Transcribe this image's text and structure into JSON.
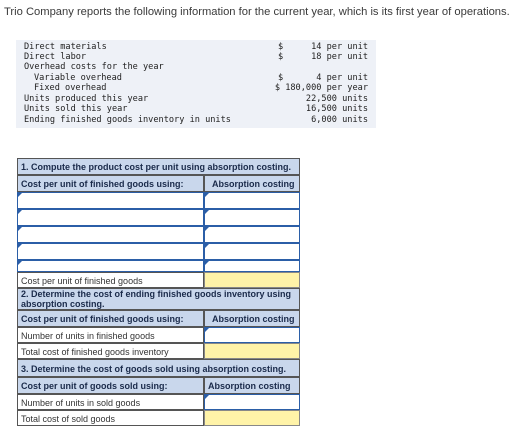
{
  "intro": "Trio Company reports the following information for the current year, which is its first year of operations.",
  "info_rows": [
    {
      "label": "Direct materials",
      "indent": false,
      "dollar": "$",
      "value": "14 per unit"
    },
    {
      "label": "Direct labor",
      "indent": false,
      "dollar": "$",
      "value": "18 per unit"
    },
    {
      "label": "Overhead costs for the year",
      "indent": false,
      "dollar": "",
      "value": ""
    },
    {
      "label": "Variable overhead",
      "indent": true,
      "dollar": "$",
      "value": "4 per unit"
    },
    {
      "label": "Fixed overhead",
      "indent": true,
      "dollar": "",
      "value": "$ 180,000 per year"
    },
    {
      "label": "Units produced this year",
      "indent": false,
      "dollar": "",
      "value": "22,500 units"
    },
    {
      "label": "Units sold this year",
      "indent": false,
      "dollar": "",
      "value": "16,500 units"
    },
    {
      "label": "Ending finished goods inventory in units",
      "indent": false,
      "dollar": "",
      "value": "6,000 units"
    }
  ],
  "part1": {
    "title": "1. Compute the product cost per unit using absorption costing.",
    "col_label": "Cost per unit of finished goods using:",
    "col_header": "Absorption costing",
    "total_label": "Cost per unit of finished goods"
  },
  "part2": {
    "title": "2. Determine the cost of ending finished goods inventory using absorption costing.",
    "col_label": "Cost per unit of finished goods using:",
    "col_header": "Absorption costing",
    "row1": "Number of units in finished goods",
    "row2": "Total cost of finished goods inventory"
  },
  "part3": {
    "title": "3. Determine the cost of goods sold using absorption costing.",
    "col_label": "Cost per unit of goods sold using:",
    "col_header": "Absorption costing",
    "row1": "Number of units in sold goods",
    "row2": "Total cost of sold goods"
  }
}
